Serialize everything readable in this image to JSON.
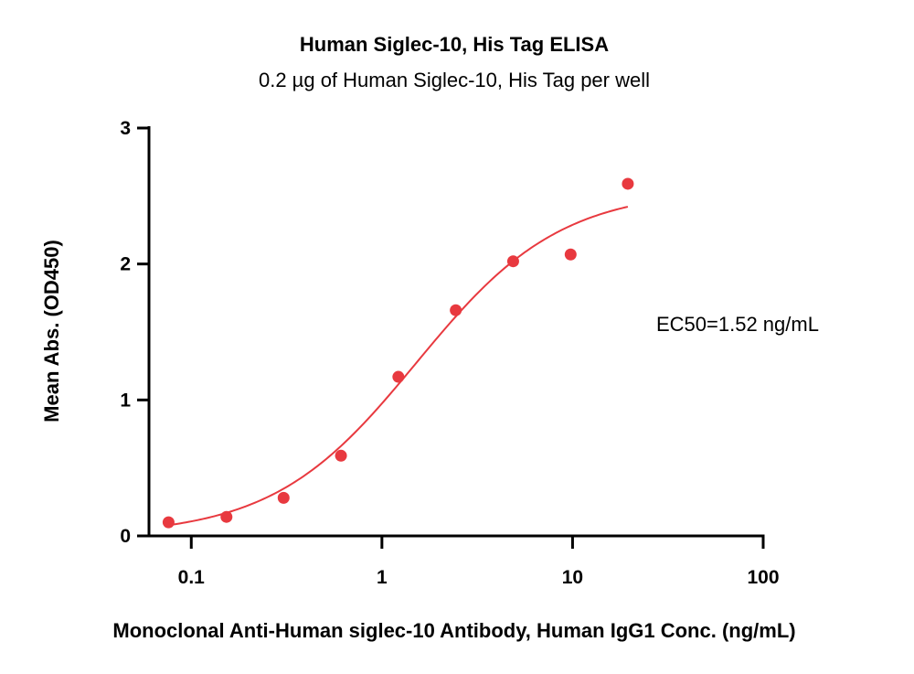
{
  "chart_data": {
    "type": "scatter",
    "title": "Human Siglec-10, His Tag ELISA",
    "subtitle": "0.2 µg of Human Siglec-10, His Tag per well",
    "xlabel": "Monoclonal Anti-Human siglec-10 Antibody, Human IgG1 Conc. (ng/mL)",
    "ylabel": "Mean Abs. (OD450)",
    "x_scale": "log",
    "xlim": [
      0.06,
      100
    ],
    "ylim": [
      0,
      3
    ],
    "x_ticks": [
      0.1,
      1,
      10,
      100
    ],
    "x_tick_labels": [
      "0.1",
      "1",
      "10",
      "100"
    ],
    "y_ticks": [
      0,
      1,
      2,
      3
    ],
    "y_tick_labels": [
      "0",
      "1",
      "2",
      "3"
    ],
    "grid": false,
    "series": [
      {
        "color": "#e8393f",
        "points": [
          {
            "x": 0.076,
            "y": 0.1
          },
          {
            "x": 0.153,
            "y": 0.14
          },
          {
            "x": 0.305,
            "y": 0.28
          },
          {
            "x": 0.61,
            "y": 0.59
          },
          {
            "x": 1.22,
            "y": 1.17
          },
          {
            "x": 2.44,
            "y": 1.66
          },
          {
            "x": 4.88,
            "y": 2.02
          },
          {
            "x": 9.77,
            "y": 2.07
          },
          {
            "x": 19.5,
            "y": 2.59
          }
        ],
        "fit": {
          "model": "4PL",
          "bottom": 0.0,
          "top": 2.55,
          "ec50": 1.52,
          "hill": 1.15,
          "x_range": [
            0.076,
            19.5
          ]
        }
      }
    ],
    "annotations": [
      {
        "text": "EC50=1.52 ng/mL"
      }
    ]
  }
}
